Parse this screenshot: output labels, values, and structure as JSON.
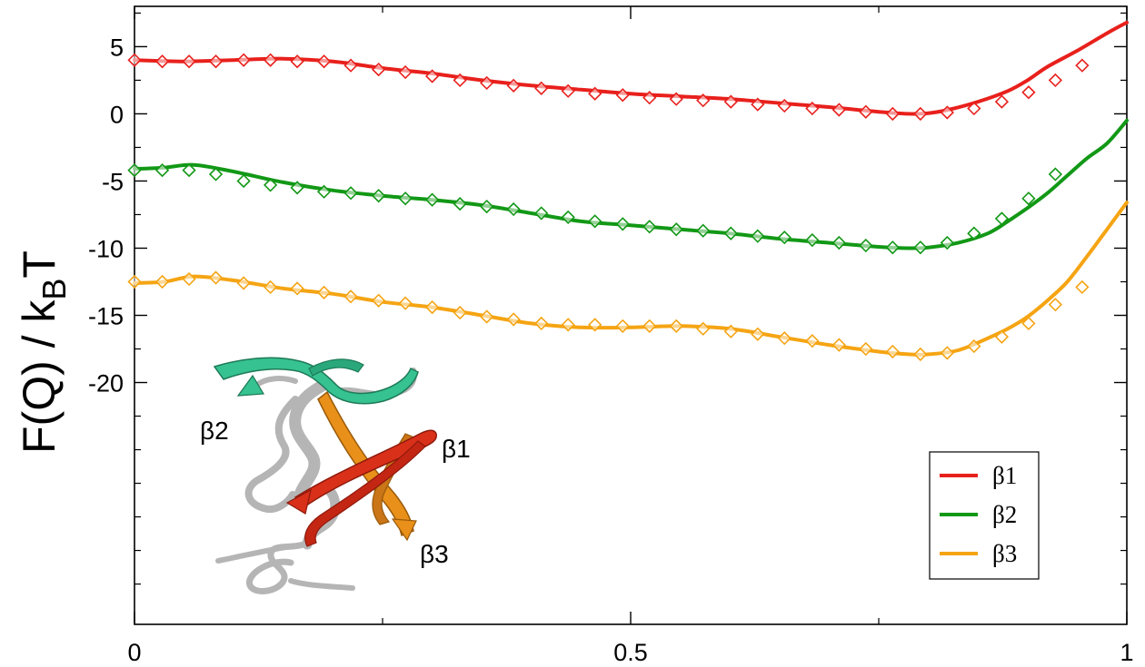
{
  "chart_data": {
    "type": "line",
    "title": "",
    "xlabel": "",
    "ylabel": "F(Q) / k",
    "ylabel_sub": "B",
    "ylabel_tail": "T",
    "xlim": [
      0,
      1
    ],
    "ylim": [
      -38,
      8
    ],
    "xticks": [
      0,
      0.5,
      1
    ],
    "xtick_labels": [
      "0",
      "0.5",
      "1"
    ],
    "xticks_minor": [
      0.25,
      0.75
    ],
    "yticks": [
      5,
      0,
      -5,
      -10,
      -15,
      -20
    ],
    "ytick_labels": [
      "5",
      "0",
      "-5",
      "-10",
      "-15",
      "-20"
    ],
    "yticks_minor": [
      7.5,
      2.5,
      -2.5,
      -7.5,
      -12.5,
      -17.5,
      -22.5,
      -25,
      -27.5,
      -30,
      -32.5,
      -35
    ],
    "grid": false,
    "legend_position": "bottom-right",
    "series": [
      {
        "name": "β1",
        "color": "#e8201c",
        "line": [
          [
            0,
            4.0
          ],
          [
            0.05,
            3.9
          ],
          [
            0.1,
            4.0
          ],
          [
            0.15,
            4.1
          ],
          [
            0.2,
            3.9
          ],
          [
            0.25,
            3.4
          ],
          [
            0.3,
            3.0
          ],
          [
            0.35,
            2.5
          ],
          [
            0.4,
            2.1
          ],
          [
            0.45,
            1.8
          ],
          [
            0.5,
            1.5
          ],
          [
            0.55,
            1.3
          ],
          [
            0.6,
            1.1
          ],
          [
            0.65,
            0.8
          ],
          [
            0.7,
            0.5
          ],
          [
            0.75,
            0.15
          ],
          [
            0.78,
            0.0
          ],
          [
            0.8,
            0.05
          ],
          [
            0.82,
            0.3
          ],
          [
            0.85,
            0.9
          ],
          [
            0.88,
            1.7
          ],
          [
            0.9,
            2.5
          ],
          [
            0.92,
            3.5
          ],
          [
            0.95,
            4.7
          ],
          [
            0.98,
            6.0
          ],
          [
            1.0,
            6.8
          ]
        ],
        "markers": [
          [
            0.0,
            4.0
          ],
          [
            0.028,
            3.9
          ],
          [
            0.055,
            3.9
          ],
          [
            0.082,
            3.9
          ],
          [
            0.11,
            4.0
          ],
          [
            0.137,
            4.0
          ],
          [
            0.164,
            3.9
          ],
          [
            0.191,
            3.9
          ],
          [
            0.218,
            3.6
          ],
          [
            0.246,
            3.3
          ],
          [
            0.273,
            3.1
          ],
          [
            0.3,
            2.8
          ],
          [
            0.328,
            2.5
          ],
          [
            0.355,
            2.3
          ],
          [
            0.382,
            2.1
          ],
          [
            0.41,
            1.9
          ],
          [
            0.437,
            1.7
          ],
          [
            0.464,
            1.5
          ],
          [
            0.492,
            1.4
          ],
          [
            0.519,
            1.2
          ],
          [
            0.546,
            1.1
          ],
          [
            0.573,
            1.0
          ],
          [
            0.601,
            0.9
          ],
          [
            0.628,
            0.7
          ],
          [
            0.655,
            0.6
          ],
          [
            0.683,
            0.4
          ],
          [
            0.71,
            0.3
          ],
          [
            0.737,
            0.15
          ],
          [
            0.764,
            0.0
          ],
          [
            0.792,
            0.0
          ],
          [
            0.819,
            0.1
          ],
          [
            0.846,
            0.4
          ],
          [
            0.874,
            0.9
          ],
          [
            0.901,
            1.6
          ],
          [
            0.928,
            2.5
          ],
          [
            0.955,
            3.6
          ]
        ]
      },
      {
        "name": "β2",
        "color": "#129816",
        "line": [
          [
            0,
            -4.1
          ],
          [
            0.03,
            -4.0
          ],
          [
            0.06,
            -3.8
          ],
          [
            0.1,
            -4.3
          ],
          [
            0.15,
            -5.1
          ],
          [
            0.2,
            -5.7
          ],
          [
            0.25,
            -6.1
          ],
          [
            0.3,
            -6.4
          ],
          [
            0.35,
            -6.8
          ],
          [
            0.4,
            -7.4
          ],
          [
            0.45,
            -8.0
          ],
          [
            0.5,
            -8.3
          ],
          [
            0.55,
            -8.6
          ],
          [
            0.6,
            -8.9
          ],
          [
            0.65,
            -9.3
          ],
          [
            0.7,
            -9.6
          ],
          [
            0.75,
            -9.9
          ],
          [
            0.78,
            -10.0
          ],
          [
            0.8,
            -9.95
          ],
          [
            0.83,
            -9.6
          ],
          [
            0.86,
            -8.9
          ],
          [
            0.88,
            -8.0
          ],
          [
            0.9,
            -7.0
          ],
          [
            0.92,
            -5.9
          ],
          [
            0.94,
            -4.6
          ],
          [
            0.96,
            -3.3
          ],
          [
            0.98,
            -2.2
          ],
          [
            1.0,
            -0.5
          ]
        ],
        "markers": [
          [
            0.0,
            -4.2
          ],
          [
            0.028,
            -4.2
          ],
          [
            0.055,
            -4.2
          ],
          [
            0.082,
            -4.5
          ],
          [
            0.11,
            -5.0
          ],
          [
            0.137,
            -5.3
          ],
          [
            0.164,
            -5.5
          ],
          [
            0.191,
            -5.8
          ],
          [
            0.218,
            -5.9
          ],
          [
            0.246,
            -6.1
          ],
          [
            0.273,
            -6.3
          ],
          [
            0.3,
            -6.4
          ],
          [
            0.328,
            -6.7
          ],
          [
            0.355,
            -6.9
          ],
          [
            0.382,
            -7.1
          ],
          [
            0.41,
            -7.4
          ],
          [
            0.437,
            -7.7
          ],
          [
            0.464,
            -8.0
          ],
          [
            0.492,
            -8.2
          ],
          [
            0.519,
            -8.4
          ],
          [
            0.546,
            -8.6
          ],
          [
            0.573,
            -8.7
          ],
          [
            0.601,
            -8.9
          ],
          [
            0.628,
            -9.1
          ],
          [
            0.655,
            -9.2
          ],
          [
            0.683,
            -9.4
          ],
          [
            0.71,
            -9.6
          ],
          [
            0.737,
            -9.8
          ],
          [
            0.764,
            -9.95
          ],
          [
            0.792,
            -9.95
          ],
          [
            0.819,
            -9.6
          ],
          [
            0.846,
            -8.9
          ],
          [
            0.874,
            -7.8
          ],
          [
            0.901,
            -6.3
          ],
          [
            0.928,
            -4.5
          ]
        ]
      },
      {
        "name": "β3",
        "color": "#f5a413",
        "line": [
          [
            0,
            -12.6
          ],
          [
            0.03,
            -12.5
          ],
          [
            0.06,
            -12.1
          ],
          [
            0.1,
            -12.4
          ],
          [
            0.15,
            -13.0
          ],
          [
            0.2,
            -13.4
          ],
          [
            0.25,
            -14.0
          ],
          [
            0.3,
            -14.4
          ],
          [
            0.35,
            -15.0
          ],
          [
            0.4,
            -15.6
          ],
          [
            0.45,
            -15.9
          ],
          [
            0.5,
            -15.9
          ],
          [
            0.55,
            -15.8
          ],
          [
            0.6,
            -16.0
          ],
          [
            0.65,
            -16.6
          ],
          [
            0.7,
            -17.2
          ],
          [
            0.75,
            -17.7
          ],
          [
            0.78,
            -17.9
          ],
          [
            0.8,
            -17.9
          ],
          [
            0.83,
            -17.6
          ],
          [
            0.86,
            -16.7
          ],
          [
            0.88,
            -16.0
          ],
          [
            0.9,
            -15.1
          ],
          [
            0.92,
            -13.9
          ],
          [
            0.94,
            -12.5
          ],
          [
            0.96,
            -10.6
          ],
          [
            0.98,
            -8.6
          ],
          [
            1.0,
            -6.6
          ]
        ],
        "markers": [
          [
            0.0,
            -12.5
          ],
          [
            0.028,
            -12.5
          ],
          [
            0.055,
            -12.3
          ],
          [
            0.082,
            -12.2
          ],
          [
            0.11,
            -12.6
          ],
          [
            0.137,
            -12.9
          ],
          [
            0.164,
            -13.0
          ],
          [
            0.191,
            -13.3
          ],
          [
            0.218,
            -13.6
          ],
          [
            0.246,
            -13.9
          ],
          [
            0.273,
            -14.1
          ],
          [
            0.3,
            -14.4
          ],
          [
            0.328,
            -14.8
          ],
          [
            0.355,
            -15.1
          ],
          [
            0.382,
            -15.3
          ],
          [
            0.41,
            -15.6
          ],
          [
            0.437,
            -15.7
          ],
          [
            0.464,
            -15.7
          ],
          [
            0.492,
            -15.8
          ],
          [
            0.519,
            -15.8
          ],
          [
            0.546,
            -15.8
          ],
          [
            0.573,
            -16.0
          ],
          [
            0.601,
            -16.2
          ],
          [
            0.628,
            -16.4
          ],
          [
            0.655,
            -16.7
          ],
          [
            0.683,
            -16.9
          ],
          [
            0.71,
            -17.2
          ],
          [
            0.737,
            -17.5
          ],
          [
            0.764,
            -17.7
          ],
          [
            0.792,
            -17.9
          ],
          [
            0.819,
            -17.8
          ],
          [
            0.846,
            -17.3
          ],
          [
            0.874,
            -16.6
          ],
          [
            0.901,
            -15.6
          ],
          [
            0.928,
            -14.2
          ],
          [
            0.955,
            -12.9
          ]
        ]
      }
    ],
    "inset": {
      "strand_labels": [
        "β2",
        "β1",
        "β3"
      ],
      "colors": {
        "beta1": "#d9301a",
        "beta2": "#36c291",
        "beta3": "#e8901a",
        "coil": "#b5b5b5"
      }
    }
  }
}
